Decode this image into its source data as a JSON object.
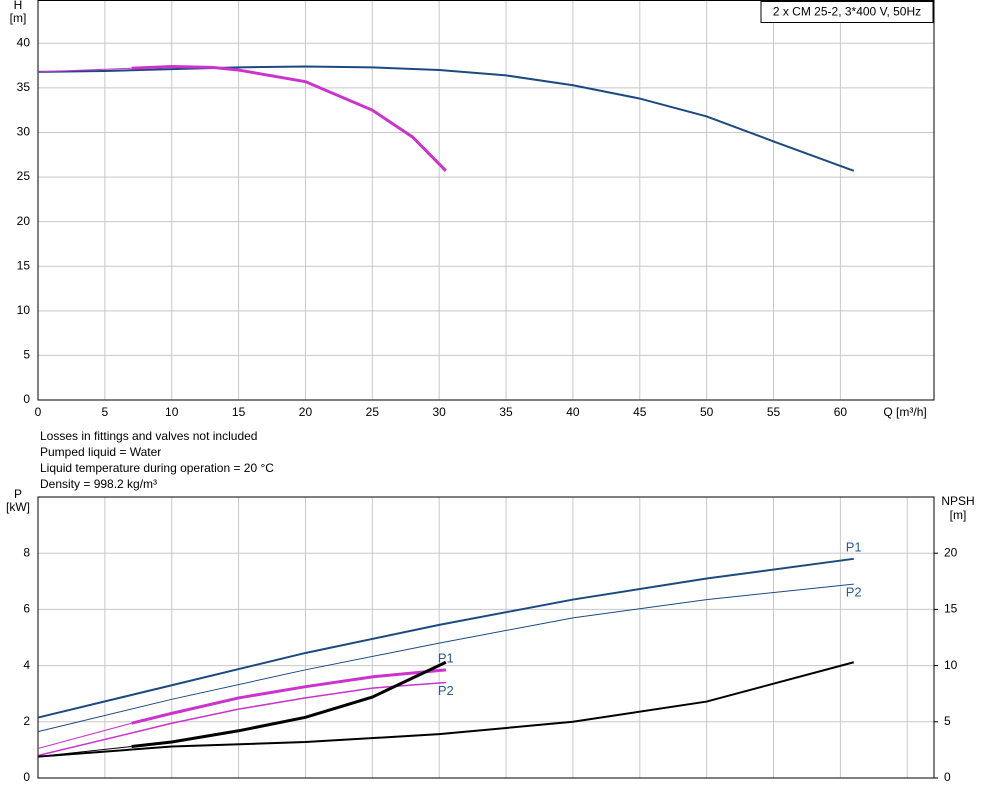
{
  "chart_data": [
    {
      "type": "line",
      "annotations": [
        "2 x CM 25-2, 3*400 V, 50Hz"
      ],
      "x_label": "Q [m³/h]",
      "y_label": [
        "H",
        "[m]"
      ],
      "xlim": [
        0,
        67
      ],
      "xticks": [
        0,
        5,
        10,
        15,
        20,
        25,
        30,
        35,
        40,
        45,
        50,
        55,
        60
      ],
      "ylim": [
        0,
        44.8
      ],
      "yticks": [
        0,
        5,
        10,
        15,
        20,
        25,
        30,
        35,
        40
      ],
      "grid": true,
      "series": [
        {
          "color": "#1c4a80",
          "line_width": 2,
          "x": [
            0,
            5,
            10,
            15,
            20,
            25,
            30,
            35,
            40,
            45,
            50,
            55,
            61
          ],
          "values": [
            36.8,
            36.9,
            37.1,
            37.3,
            37.4,
            37.3,
            37.0,
            36.4,
            35.3,
            33.8,
            31.8,
            29.0,
            25.7
          ]
        },
        {
          "color": "#cc33cc",
          "line_width": 1,
          "x": [
            0,
            7
          ],
          "values": [
            36.8,
            37.2
          ]
        },
        {
          "color": "#cc33cc",
          "line_width": 3,
          "x": [
            7,
            10,
            13,
            15,
            20,
            25,
            28,
            30.5
          ],
          "values": [
            37.2,
            37.4,
            37.3,
            37.0,
            35.7,
            32.5,
            29.5,
            25.7
          ]
        }
      ]
    },
    {
      "type": "line",
      "y_label": [
        "P",
        "[kW]"
      ],
      "y2_label": [
        "NPSH",
        "[m]"
      ],
      "xlim": [
        0,
        67
      ],
      "xticks": [
        0,
        5,
        10,
        15,
        20,
        25,
        30,
        35,
        40,
        45,
        50,
        55,
        60,
        65
      ],
      "xtick_labels": false,
      "ylim": [
        0,
        10
      ],
      "yticks": [
        0,
        2,
        4,
        6,
        8
      ],
      "y2lim": [
        0,
        25
      ],
      "y2ticks": [
        0,
        5,
        10,
        15,
        20
      ],
      "grid": true,
      "series": [
        {
          "name": "P1",
          "color": "#1c4a80",
          "line_width": 2,
          "x": [
            0,
            10,
            20,
            30,
            40,
            50,
            61
          ],
          "values": [
            2.15,
            3.3,
            4.45,
            5.45,
            6.35,
            7.1,
            7.8
          ],
          "label_side": "above"
        },
        {
          "name": "P2",
          "color": "#1c4a80",
          "line_width": 1,
          "x": [
            0,
            10,
            20,
            30,
            40,
            50,
            61
          ],
          "values": [
            1.65,
            2.8,
            3.85,
            4.8,
            5.7,
            6.35,
            6.9
          ],
          "label_side": "below"
        },
        {
          "color": "#cc33cc",
          "line_width": 1,
          "x": [
            0,
            7
          ],
          "values": [
            1.05,
            1.95
          ]
        },
        {
          "name": "P1",
          "color": "#cc33cc",
          "line_width": 3,
          "x": [
            7,
            10,
            15,
            20,
            25,
            30.5
          ],
          "values": [
            1.95,
            2.3,
            2.85,
            3.25,
            3.6,
            3.85
          ],
          "label_side": "above"
        },
        {
          "name": "P2",
          "color": "#cc33cc",
          "line_width": 1.5,
          "x": [
            0,
            7,
            10,
            15,
            20,
            25,
            30.5
          ],
          "values": [
            0.8,
            1.6,
            1.95,
            2.45,
            2.85,
            3.2,
            3.4
          ],
          "label_side": "below"
        },
        {
          "color": "#000000",
          "line_width": 1,
          "axis": "y2",
          "x": [
            0,
            7
          ],
          "values": [
            1.9,
            2.8
          ]
        },
        {
          "color": "#000000",
          "line_width": 3,
          "axis": "y2",
          "x": [
            7,
            10,
            15,
            20,
            25,
            30.5
          ],
          "values": [
            2.8,
            3.2,
            4.2,
            5.4,
            7.2,
            10.3
          ]
        },
        {
          "color": "#000000",
          "line_width": 2,
          "axis": "y2",
          "x": [
            0,
            10,
            20,
            30,
            40,
            50,
            61
          ],
          "values": [
            1.9,
            2.8,
            3.2,
            3.9,
            5.0,
            6.8,
            10.3
          ]
        }
      ]
    }
  ],
  "notes": [
    "Losses in fittings and valves not included",
    "Pumped liquid = Water",
    "Liquid temperature during operation = 20 °C",
    "Density = 998.2 kg/m³"
  ]
}
